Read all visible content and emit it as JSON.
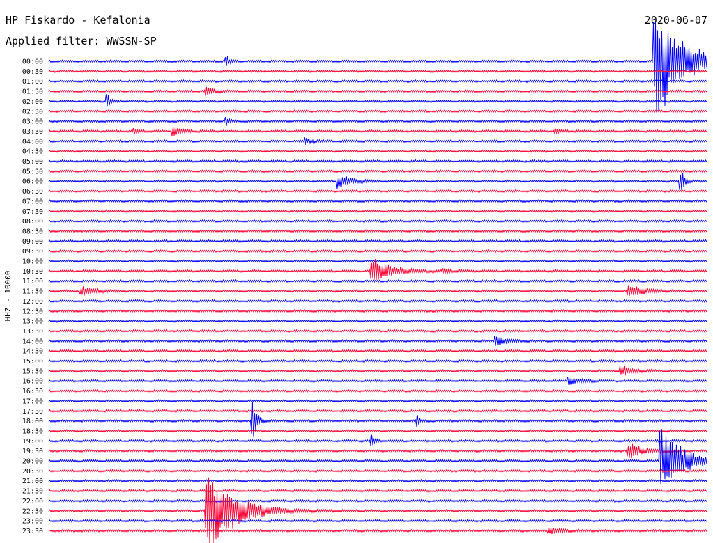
{
  "header": {
    "station": "HP Fiskardo - Kefalonia",
    "filter": "Applied filter: WWSSN-SP",
    "date": "2020-06-07"
  },
  "chart_data": {
    "type": "line",
    "ylabel": "HHZ - 10000",
    "colors": [
      "#0000ff",
      "#ff0033"
    ],
    "rows": [
      "00:00",
      "00:30",
      "01:00",
      "01:30",
      "02:00",
      "02:30",
      "03:00",
      "03:30",
      "04:00",
      "04:30",
      "05:00",
      "05:30",
      "06:00",
      "06:30",
      "07:00",
      "07:30",
      "08:00",
      "08:30",
      "09:00",
      "09:30",
      "10:00",
      "10:30",
      "11:00",
      "11:30",
      "12:00",
      "12:30",
      "13:00",
      "13:30",
      "14:00",
      "14:30",
      "15:00",
      "15:30",
      "16:00",
      "16:30",
      "17:00",
      "17:30",
      "18:00",
      "18:30",
      "19:00",
      "19:30",
      "20:00",
      "20:30",
      "21:00",
      "21:30",
      "22:00",
      "22:30",
      "23:00",
      "23:30"
    ],
    "events": [
      {
        "row": 0,
        "pos": 0.92,
        "amp": 95,
        "decay": 0.04,
        "dir": "both"
      },
      {
        "row": 0,
        "pos": 0.27,
        "amp": 8,
        "decay": 0.006
      },
      {
        "row": 3,
        "pos": 0.24,
        "amp": 7,
        "decay": 0.012
      },
      {
        "row": 4,
        "pos": 0.09,
        "amp": 9,
        "decay": 0.004
      },
      {
        "row": 6,
        "pos": 0.27,
        "amp": 6,
        "decay": 0.004
      },
      {
        "row": 7,
        "pos": 0.19,
        "amp": 8,
        "decay": 0.012
      },
      {
        "row": 7,
        "pos": 0.13,
        "amp": 4,
        "decay": 0.008
      },
      {
        "row": 7,
        "pos": 0.77,
        "amp": 4,
        "decay": 0.008
      },
      {
        "row": 8,
        "pos": 0.39,
        "amp": 5,
        "decay": 0.012
      },
      {
        "row": 12,
        "pos": 0.44,
        "amp": 11,
        "decay": 0.018
      },
      {
        "row": 12,
        "pos": 0.96,
        "amp": 20,
        "decay": 0.006
      },
      {
        "row": 21,
        "pos": 0.49,
        "amp": 25,
        "decay": 0.025
      },
      {
        "row": 21,
        "pos": 0.6,
        "amp": 5,
        "decay": 0.01
      },
      {
        "row": 23,
        "pos": 0.05,
        "amp": 7,
        "decay": 0.02
      },
      {
        "row": 23,
        "pos": 0.88,
        "amp": 12,
        "decay": 0.02
      },
      {
        "row": 28,
        "pos": 0.68,
        "amp": 11,
        "decay": 0.012
      },
      {
        "row": 31,
        "pos": 0.87,
        "amp": 10,
        "decay": 0.015
      },
      {
        "row": 32,
        "pos": 0.79,
        "amp": 6,
        "decay": 0.015
      },
      {
        "row": 36,
        "pos": 0.31,
        "amp": 34,
        "decay": 0.006
      },
      {
        "row": 36,
        "pos": 0.56,
        "amp": 10,
        "decay": 0.003
      },
      {
        "row": 38,
        "pos": 0.49,
        "amp": 12,
        "decay": 0.005
      },
      {
        "row": 39,
        "pos": 0.88,
        "amp": 14,
        "decay": 0.02
      },
      {
        "row": 40,
        "pos": 0.93,
        "amp": 50,
        "decay": 0.035
      },
      {
        "row": 45,
        "pos": 0.24,
        "amp": 70,
        "decay": 0.04,
        "dir": "both"
      },
      {
        "row": 47,
        "pos": 0.76,
        "amp": 5,
        "decay": 0.02
      }
    ]
  }
}
